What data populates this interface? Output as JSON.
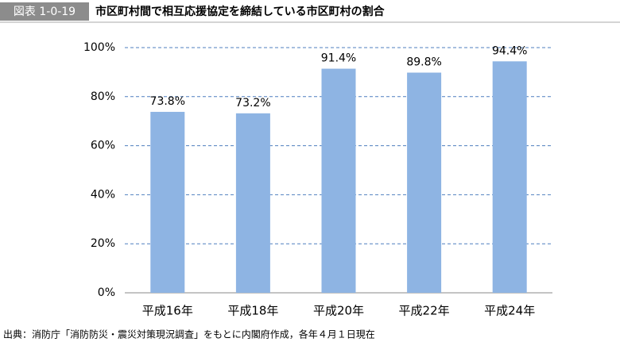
{
  "header": {
    "label": "図表 1-0-19",
    "title": "市区町村間で相互応援協定を締結している市区町村の割合"
  },
  "chart_data": {
    "type": "bar",
    "categories": [
      "平成16年",
      "平成18年",
      "平成20年",
      "平成22年",
      "平成24年"
    ],
    "values": [
      73.8,
      73.2,
      91.4,
      89.8,
      94.4
    ],
    "value_labels": [
      "73.8%",
      "73.2%",
      "91.4%",
      "89.8%",
      "94.4%"
    ],
    "color": "#8eb4e3",
    "ylim": [
      0,
      100
    ],
    "yticks": [
      {
        "value": 0,
        "label": "0%"
      },
      {
        "value": 20,
        "label": "20%"
      },
      {
        "value": 40,
        "label": "40%"
      },
      {
        "value": 60,
        "label": "60%"
      },
      {
        "value": 80,
        "label": "80%"
      },
      {
        "value": 100,
        "label": "100%"
      }
    ],
    "grid": true
  },
  "source": "出典：消防庁「消防防災・震災対策現況調査」をもとに内閣府作成，各年４月１日現在"
}
